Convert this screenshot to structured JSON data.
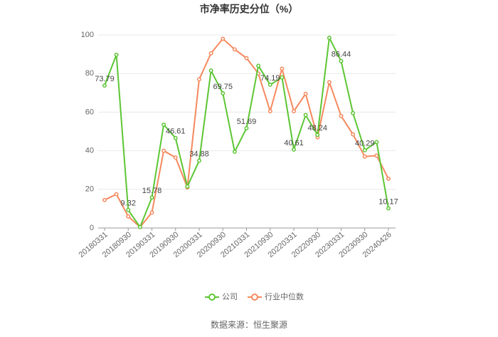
{
  "chart_data": {
    "type": "line",
    "title": "市净率历史分位（%）",
    "categories": [
      "20180331",
      null,
      "20180930",
      null,
      "20190331",
      null,
      "20190930",
      null,
      "20200331",
      null,
      "20200930",
      null,
      "20210331",
      null,
      "20210930",
      null,
      "20220331",
      null,
      "20220930",
      null,
      "20230331",
      null,
      "20230930",
      null,
      "20240426"
    ],
    "series": [
      {
        "name": "公司",
        "color": "#5cc634",
        "values": [
          73.79,
          89.7,
          9.32,
          0.5,
          15.78,
          53.5,
          46.61,
          21.5,
          34.88,
          81.5,
          69.75,
          39.5,
          51.69,
          84,
          74.19,
          78,
          40.61,
          58.5,
          48.24,
          98.5,
          86.44,
          59.5,
          40.29,
          44.5,
          10.17
        ]
      },
      {
        "name": "行业中位数",
        "color": "#f5895e",
        "values": [
          14.5,
          17.5,
          6,
          0.5,
          8,
          40,
          36.5,
          21,
          77,
          90.5,
          98,
          92.5,
          88,
          80,
          60.5,
          82.5,
          60.5,
          69.5,
          47,
          75.5,
          58,
          48.5,
          37,
          37.5,
          25.5
        ]
      }
    ],
    "ylim": [
      0,
      100
    ],
    "yticks": [
      0,
      20,
      40,
      60,
      80,
      100
    ],
    "grid": true,
    "source": "数据来源：恒生聚源"
  }
}
